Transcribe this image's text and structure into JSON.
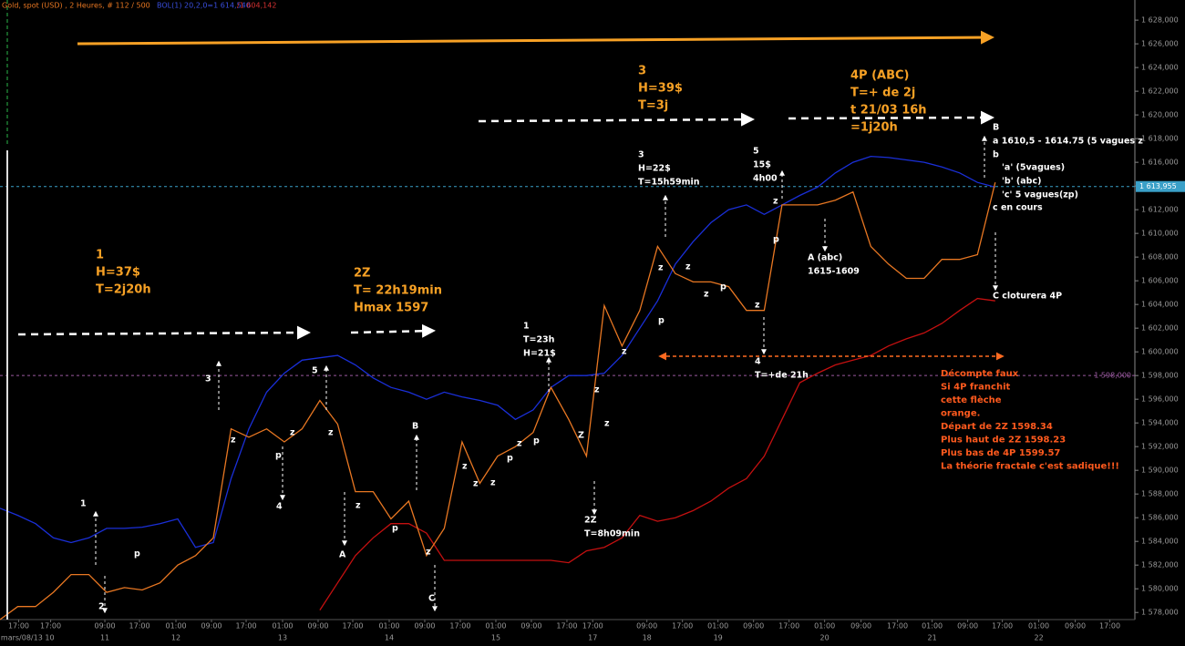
{
  "header": {
    "title": "Gold, spot (USD) , 2 Heures, # 112 / 500",
    "bands": "BOL(1) 20,2,0=1 614,540",
    "bands_lower": "/1 604,142"
  },
  "chart_data": {
    "type": "line",
    "x": [
      0,
      2,
      4,
      6,
      8,
      10,
      12,
      14,
      16,
      18,
      20,
      22,
      24,
      26,
      28,
      30,
      32,
      34,
      36,
      38,
      40,
      42,
      44,
      46,
      48,
      50,
      52,
      54,
      56,
      58,
      60,
      62,
      64,
      66,
      68,
      70,
      72,
      74,
      76,
      78,
      80,
      82,
      84,
      86,
      88,
      90,
      92,
      94,
      96,
      98,
      100,
      102,
      104,
      106,
      108,
      110,
      112
    ],
    "xlim": [
      0,
      127.2
    ],
    "ylim": [
      1577.4,
      1629.7
    ],
    "series": [
      {
        "color": "#1a2fd8",
        "values": [
          1586.8,
          1586.2,
          1585.5,
          1584.3,
          1583.9,
          1584.3,
          1585.1,
          1585.1,
          1585.2,
          1585.5,
          1585.9,
          1583.5,
          1583.9,
          1589.3,
          1593.5,
          1596.6,
          1598.2,
          1599.3,
          1599.5,
          1599.7,
          1598.9,
          1597.8,
          1597.0,
          1596.6,
          1596.0,
          1596.6,
          1596.2,
          1595.9,
          1595.5,
          1594.3,
          1595.1,
          1597.0,
          1598.0,
          1598.0,
          1598.2,
          1599.7,
          1602.0,
          1604.3,
          1607.4,
          1609.3,
          1610.9,
          1612.0,
          1612.4,
          1611.6,
          1612.4,
          1613.2,
          1613.9,
          1615.1,
          1616.0,
          1616.5,
          1616.4,
          1616.2,
          1616.0,
          1615.6,
          1615.1,
          1614.3,
          1613.9
        ]
      },
      {
        "color": "#c41010",
        "values": [
          null,
          null,
          null,
          null,
          null,
          null,
          null,
          null,
          null,
          null,
          null,
          null,
          null,
          null,
          null,
          null,
          null,
          null,
          1578.2,
          1580.5,
          1582.8,
          1584.3,
          1585.5,
          1585.5,
          1584.7,
          1582.4,
          1582.4,
          1582.4,
          1582.4,
          1582.4,
          1582.4,
          1582.4,
          1582.2,
          1583.2,
          1583.5,
          1584.3,
          1586.2,
          1585.7,
          1586.0,
          1586.6,
          1587.4,
          1588.5,
          1589.3,
          1591.2,
          1594.3,
          1597.4,
          1598.2,
          1598.9,
          1599.3,
          1599.7,
          1600.5,
          1601.1,
          1601.6,
          1602.4,
          1603.5,
          1604.5,
          1604.3
        ]
      },
      {
        "color": "#e87722",
        "values": [
          1577.4,
          1578.5,
          1578.5,
          1579.7,
          1581.2,
          1581.2,
          1579.7,
          1580.1,
          1579.9,
          1580.5,
          1582.0,
          1582.8,
          1584.3,
          1593.5,
          1592.8,
          1593.5,
          1592.4,
          1593.5,
          1595.9,
          1593.9,
          1588.2,
          1588.2,
          1585.9,
          1587.4,
          1582.8,
          1585.1,
          1592.4,
          1588.9,
          1591.2,
          1592.0,
          1593.2,
          1597.0,
          1594.3,
          1591.2,
          1603.9,
          1600.5,
          1603.5,
          1608.9,
          1606.6,
          1605.9,
          1605.9,
          1605.5,
          1603.5,
          1603.5,
          1612.4,
          1612.4,
          1612.4,
          1612.8,
          1613.5,
          1608.9,
          1607.4,
          1606.2,
          1606.2,
          1607.8,
          1607.8,
          1608.2,
          1614.3
        ]
      }
    ],
    "yticks": [
      {
        "value": 1578,
        "label": "1 578,000"
      },
      {
        "value": 1580,
        "label": "1 580,000"
      },
      {
        "value": 1582,
        "label": "1 582,000"
      },
      {
        "value": 1584,
        "label": "1 584,000"
      },
      {
        "value": 1586,
        "label": "1 586,000"
      },
      {
        "value": 1588,
        "label": "1 588,000"
      },
      {
        "value": 1590,
        "label": "1 590,000"
      },
      {
        "value": 1592,
        "label": "1 592,000"
      },
      {
        "value": 1594,
        "label": "1 594,000"
      },
      {
        "value": 1596,
        "label": "1 596,000"
      },
      {
        "value": 1598,
        "label": "1 598,000"
      },
      {
        "value": 1600,
        "label": "1 600,000"
      },
      {
        "value": 1602,
        "label": "1 602,000"
      },
      {
        "value": 1604,
        "label": "1 604,000"
      },
      {
        "value": 1606,
        "label": "1 606,000"
      },
      {
        "value": 1608,
        "label": "1 608,000"
      },
      {
        "value": 1610,
        "label": "1 610,000"
      },
      {
        "value": 1612,
        "label": "1 612,000"
      },
      {
        "value": 1614,
        "label": "1 614,000"
      },
      {
        "value": 1616,
        "label": "1 616,000"
      },
      {
        "value": 1618,
        "label": "1 618,000"
      },
      {
        "value": 1620,
        "label": "1 620,000"
      },
      {
        "value": 1622,
        "label": "1 622,000"
      },
      {
        "value": 1624,
        "label": "1 624,000"
      },
      {
        "value": 1626,
        "label": "1 626,000"
      },
      {
        "value": 1628,
        "label": "1 628,000"
      }
    ],
    "xticks": [
      {
        "value": 2.1,
        "label": "17:00"
      },
      {
        "value": 5.7,
        "label": "17:00"
      },
      {
        "value": 11.8,
        "label": "09:00"
      },
      {
        "value": 15.7,
        "label": "17:00"
      },
      {
        "value": 19.8,
        "label": "01:00"
      },
      {
        "value": 23.8,
        "label": "09:00"
      },
      {
        "value": 27.7,
        "label": "17:00"
      },
      {
        "value": 31.8,
        "label": "01:00"
      },
      {
        "value": 35.8,
        "label": "09:00"
      },
      {
        "value": 39.7,
        "label": "17:00"
      },
      {
        "value": 43.8,
        "label": "01:00"
      },
      {
        "value": 47.8,
        "label": "09:00"
      },
      {
        "value": 51.8,
        "label": "17:00"
      },
      {
        "value": 55.8,
        "label": "01:00"
      },
      {
        "value": 59.8,
        "label": "09:00"
      },
      {
        "value": 63.8,
        "label": "17:00"
      },
      {
        "value": 66.7,
        "label": "17:00"
      },
      {
        "value": 72.8,
        "label": "09:00"
      },
      {
        "value": 76.8,
        "label": "17:00"
      },
      {
        "value": 80.8,
        "label": "01:00"
      },
      {
        "value": 84.8,
        "label": "09:00"
      },
      {
        "value": 88.8,
        "label": "17:00"
      },
      {
        "value": 92.8,
        "label": "01:00"
      },
      {
        "value": 96.9,
        "label": "09:00"
      },
      {
        "value": 101.0,
        "label": "17:00"
      },
      {
        "value": 104.9,
        "label": "01:00"
      },
      {
        "value": 108.9,
        "label": "09:00"
      },
      {
        "value": 112.8,
        "label": "17:00"
      },
      {
        "value": 116.9,
        "label": "01:00"
      },
      {
        "value": 121.0,
        "label": "09:00"
      },
      {
        "value": 124.9,
        "label": "17:00"
      }
    ],
    "day_ticks": [
      {
        "value": 3.1,
        "label": "mars/08/13 10"
      },
      {
        "value": 11.8,
        "label": "11"
      },
      {
        "value": 19.8,
        "label": "12"
      },
      {
        "value": 31.8,
        "label": "13"
      },
      {
        "value": 43.8,
        "label": "14"
      },
      {
        "value": 55.8,
        "label": "15"
      },
      {
        "value": 66.7,
        "label": "17"
      },
      {
        "value": 72.8,
        "label": "18"
      },
      {
        "value": 80.8,
        "label": "19"
      },
      {
        "value": 92.8,
        "label": "20"
      },
      {
        "value": 104.9,
        "label": "21"
      },
      {
        "value": 116.9,
        "label": "22"
      }
    ],
    "hlines": [
      {
        "value": 1613.955,
        "label": "1 613,955",
        "color": "#3aa0c8"
      },
      {
        "value": 1598,
        "label": "1 598,000",
        "color": "#9a5aa0"
      }
    ],
    "annotations": [
      {
        "color": "#f7a125",
        "lines": [
          "1",
          "H=37$",
          "T=2j20h"
        ]
      },
      {
        "color": "#f7a125",
        "lines": [
          "2Z",
          "T= 22h19min",
          "Hmax 1597"
        ]
      },
      {
        "color": "#f7a125",
        "lines": [
          "3",
          "H=39$",
          "T=3j"
        ]
      },
      {
        "color": "#f7a125",
        "lines": [
          "4P (ABC)",
          "T=+ de 2j",
          "t 21/03 16h",
          "=1j20h"
        ]
      },
      {
        "color": "#ff5a1e",
        "lines": [
          "Décompte faux",
          "Si 4P franchit",
          "cette flèche",
          "orange.",
          "Départ de 2Z 1598.34",
          "Plus haut de 2Z 1598.23",
          "Plus bas de 4P  1599.57",
          "La théorie fractale c'est sadique!!!"
        ]
      },
      {
        "color": "#ffffff",
        "lines": [
          "1"
        ]
      },
      {
        "color": "#ffffff",
        "lines": [
          "2"
        ]
      },
      {
        "color": "#ffffff",
        "lines": [
          "p"
        ]
      },
      {
        "color": "#ffffff",
        "lines": [
          "3"
        ]
      },
      {
        "color": "#ffffff",
        "lines": [
          "z"
        ]
      },
      {
        "color": "#ffffff",
        "lines": [
          "p"
        ]
      },
      {
        "color": "#ffffff",
        "lines": [
          "4"
        ]
      },
      {
        "color": "#ffffff",
        "lines": [
          "z"
        ]
      },
      {
        "color": "#ffffff",
        "lines": [
          "5"
        ]
      },
      {
        "color": "#ffffff",
        "lines": [
          "z"
        ]
      },
      {
        "color": "#ffffff",
        "lines": [
          "z"
        ]
      },
      {
        "color": "#ffffff",
        "lines": [
          "A"
        ]
      },
      {
        "color": "#ffffff",
        "lines": [
          "p"
        ]
      },
      {
        "color": "#ffffff",
        "lines": [
          "B"
        ]
      },
      {
        "color": "#ffffff",
        "lines": [
          "z"
        ]
      },
      {
        "color": "#ffffff",
        "lines": [
          "C"
        ]
      },
      {
        "color": "#ffffff",
        "lines": [
          "z"
        ]
      },
      {
        "color": "#ffffff",
        "lines": [
          "z"
        ]
      },
      {
        "color": "#ffffff",
        "lines": [
          "z"
        ]
      },
      {
        "color": "#ffffff",
        "lines": [
          "p"
        ]
      },
      {
        "color": "#ffffff",
        "lines": [
          "z"
        ]
      },
      {
        "color": "#ffffff",
        "lines": [
          "p"
        ]
      },
      {
        "color": "#ffffff",
        "lines": [
          "1",
          "T=23h",
          "H=21$"
        ]
      },
      {
        "color": "#ffffff",
        "lines": [
          "Z"
        ]
      },
      {
        "color": "#ffffff",
        "lines": [
          "z"
        ]
      },
      {
        "color": "#ffffff",
        "lines": [
          "z"
        ]
      },
      {
        "color": "#ffffff",
        "lines": [
          "z"
        ]
      },
      {
        "color": "#ffffff",
        "lines": [
          "2Z",
          "T=8h09min"
        ]
      },
      {
        "color": "#ffffff",
        "lines": [
          "3",
          "H=22$",
          "T=15h59min"
        ]
      },
      {
        "color": "#ffffff",
        "lines": [
          "z"
        ]
      },
      {
        "color": "#ffffff",
        "lines": [
          "z"
        ]
      },
      {
        "color": "#ffffff",
        "lines": [
          "p"
        ]
      },
      {
        "color": "#ffffff",
        "lines": [
          "p"
        ]
      },
      {
        "color": "#ffffff",
        "lines": [
          "z"
        ]
      },
      {
        "color": "#ffffff",
        "lines": [
          "z"
        ]
      },
      {
        "color": "#ffffff",
        "lines": [
          "5",
          "15$",
          "4h00"
        ]
      },
      {
        "color": "#ffffff",
        "lines": [
          "z"
        ]
      },
      {
        "color": "#ffffff",
        "lines": [
          "p"
        ]
      },
      {
        "color": "#ffffff",
        "lines": [
          "4",
          "T=+de 21h"
        ]
      },
      {
        "color": "#ffffff",
        "lines": [
          "A (abc)",
          "1615-1609"
        ]
      },
      {
        "color": "#ffffff",
        "lines": [
          "B",
          "a 1610,5 - 1614.75 (5 vagues z",
          "b"
        ]
      },
      {
        "color": "#ffffff",
        "lines": [
          "'a' (5vagues)",
          "'b' (abc)",
          "'c' 5 vagues(zp)"
        ]
      },
      {
        "color": "#ffffff",
        "lines": [
          "c en cours"
        ]
      },
      {
        "color": "#ffffff",
        "lines": [
          "C cloturera 4P"
        ]
      }
    ]
  }
}
